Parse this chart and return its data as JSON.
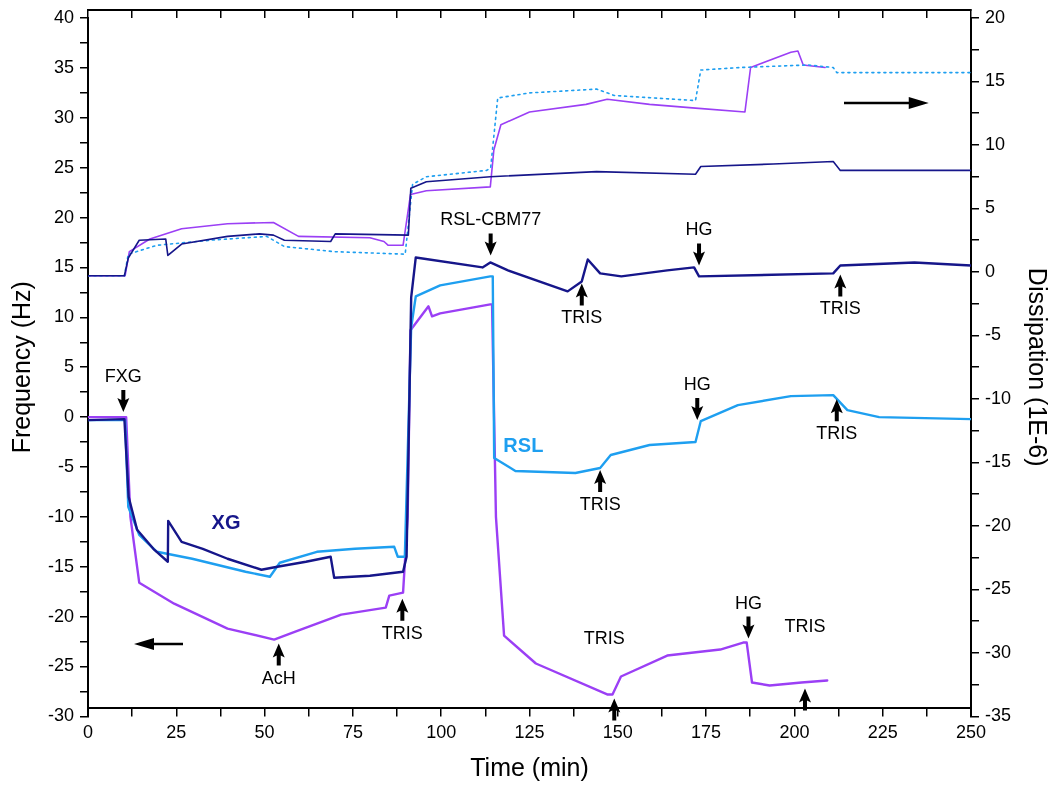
{
  "chart_data": {
    "type": "line",
    "xlabel": "Time (min)",
    "ylabel": "Frequency (Hz)",
    "y2label": "Dissipation (1E-6)",
    "xlim": [
      0,
      250
    ],
    "xticks": [
      0,
      {
        "value": 12.5,
        "label": null
      },
      25,
      {
        "value": 37.5,
        "label": null
      },
      50,
      {
        "value": 62.5,
        "label": null
      },
      75,
      {
        "value": 87.5,
        "label": null
      },
      100,
      {
        "value": 112.5,
        "label": null
      },
      125,
      {
        "value": 137.5,
        "label": null
      },
      150,
      {
        "value": 162.5,
        "label": null
      },
      175,
      {
        "value": 187.5,
        "label": null
      },
      200,
      {
        "value": 212.5,
        "label": null
      },
      225,
      {
        "value": 237.5,
        "label": null
      },
      250
    ],
    "ylim": [
      -30,
      40
    ],
    "yticks": [
      -30,
      {
        "value": -27.5,
        "label": null
      },
      -25,
      {
        "value": -22.5,
        "label": null
      },
      -20,
      {
        "value": -17.5,
        "label": null
      },
      -15,
      {
        "value": -12.5,
        "label": null
      },
      -10,
      {
        "value": -7.5,
        "label": null
      },
      -5,
      {
        "value": -2.5,
        "label": null
      },
      0,
      {
        "value": 2.5,
        "label": null
      },
      5,
      {
        "value": 7.5,
        "label": null
      },
      10,
      {
        "value": 12.5,
        "label": null
      },
      15,
      {
        "value": 17.5,
        "label": null
      },
      20,
      {
        "value": 22.5,
        "label": null
      },
      25,
      {
        "value": 27.5,
        "label": null
      },
      30,
      {
        "value": 32.5,
        "label": null
      },
      35,
      {
        "value": 37.5,
        "label": null
      },
      40
    ],
    "y2lim": [
      -35,
      20
    ],
    "y2ticks": [
      -35,
      {
        "value": -32.5,
        "label": null
      },
      -30,
      {
        "value": -27.5,
        "label": null
      },
      -25,
      {
        "value": -22.5,
        "label": null
      },
      -20,
      {
        "value": -17.5,
        "label": null
      },
      -15,
      {
        "value": -12.5,
        "label": null
      },
      -10,
      {
        "value": -7.5,
        "label": null
      },
      -5,
      {
        "value": -2.5,
        "label": null
      },
      0,
      {
        "value": 2.5,
        "label": null
      },
      5,
      {
        "value": 7.5,
        "label": null
      },
      10,
      {
        "value": 12.5,
        "label": null
      },
      15,
      {
        "value": 17.5,
        "label": null
      },
      20
    ],
    "grid": false,
    "legend": false,
    "marker": "none",
    "series": [
      {
        "name": "XG",
        "color": "#16168a",
        "line_style": "solid",
        "x": [
          0,
          10.3,
          11.5,
          13.9,
          18.5,
          22.6,
          22.7,
          26.5,
          32.5,
          39.5,
          49.1,
          53.6,
          61.7,
          68.7,
          69.7,
          79.8,
          89.2,
          90.2,
          91.5,
          92.8,
          111.7,
          113.9,
          118.9,
          135.8,
          139.8,
          141.5,
          145,
          151,
          164,
          171.6,
          173,
          211,
          213,
          234,
          250
        ],
        "values": [
          -0.3,
          -0.2,
          -8,
          -11.3,
          -13.2,
          -14.5,
          -10.4,
          -12.5,
          -13.2,
          -14.2,
          -15.3,
          -15,
          -14.5,
          -14,
          -16.1,
          -15.9,
          -15.5,
          -14,
          12,
          16,
          15,
          15.5,
          14.7,
          12.6,
          13.6,
          15.8,
          14.4,
          14.1,
          14.7,
          15,
          14.1,
          14.4,
          15.2,
          15.5,
          15.2
        ]
      },
      {
        "name": "RSL",
        "color": "#1e9ff0",
        "line_style": "solid",
        "x": [
          0,
          10.5,
          11.4,
          14.5,
          19.5,
          29.5,
          44.6,
          51.5,
          54.3,
          64.8,
          75.6,
          86.7,
          87.7,
          89.7,
          90.8,
          91.5,
          92.8,
          99.7,
          113.9,
          114.6,
          115,
          121,
          138,
          145,
          148,
          159,
          172,
          173.5,
          184,
          199,
          211,
          215,
          224,
          250
        ],
        "values": [
          -0.3,
          -0.3,
          -9,
          -11.8,
          -13.5,
          -14.2,
          -15.5,
          -16,
          -14.6,
          -13.5,
          -13.2,
          -13,
          -14,
          -14,
          0,
          9,
          12.1,
          13.2,
          14.1,
          14.1,
          -4.1,
          -5.4,
          -5.6,
          -5.1,
          -3.8,
          -2.8,
          -2.5,
          -0.4,
          1.2,
          2.1,
          2.2,
          0.7,
          0,
          -0.2
        ]
      },
      {
        "color": "#9b3ff5",
        "line_style": "solid",
        "x": [
          0,
          10.8,
          12,
          14.5,
          24.4,
          39.5,
          52.7,
          58.7,
          71.7,
          84.3,
          85.3,
          89.2,
          90.5,
          91.3,
          96.4,
          97.4,
          99.7,
          113.9,
          114.4,
          115.5,
          117.8,
          126.8,
          147,
          148.5,
          150.9,
          164,
          179,
          185.5,
          186.5,
          188,
          193,
          202,
          209.3
        ],
        "values": [
          0,
          0,
          -10,
          -16.6,
          -18.7,
          -21.2,
          -22.3,
          -21.5,
          -19.8,
          -19.1,
          -17.9,
          -17.6,
          -10,
          8.7,
          11.1,
          10.1,
          10.4,
          11.3,
          11.3,
          -10,
          -21.9,
          -24.7,
          -27.8,
          -27.8,
          -26,
          -23.9,
          -23.3,
          -22.6,
          -22.6,
          -26.6,
          -26.9,
          -26.6,
          -26.4
        ]
      },
      {
        "color": "#16168a",
        "line_style": "solid",
        "axis": "y2",
        "x": [
          0,
          10.3,
          11.4,
          14.5,
          22,
          22.6,
          26.5,
          39.5,
          48.5,
          52.5,
          55.6,
          68.7,
          70,
          90.7,
          91.4,
          95.8,
          113.9,
          144,
          172,
          173.5,
          194,
          211,
          213,
          250
        ],
        "values": [
          -0.3,
          -0.3,
          1.1,
          2.5,
          2.6,
          1.3,
          2.2,
          2.8,
          3,
          2.9,
          2.5,
          2.4,
          3,
          2.9,
          6.6,
          7.1,
          7.5,
          7.9,
          7.7,
          8.3,
          8.5,
          8.7,
          8,
          8
        ]
      },
      {
        "color": "#1e9ff0",
        "line_style": "dotted",
        "axis": "y2",
        "x": [
          0,
          10.3,
          11.4,
          19.5,
          34.6,
          50.6,
          55.6,
          69.7,
          89.8,
          91.9,
          95.8,
          112.9,
          114,
          116,
          125,
          144,
          149,
          172,
          173.5,
          184.5,
          204,
          211,
          212,
          250
        ],
        "values": [
          -0.3,
          -0.3,
          1.4,
          2.1,
          2.5,
          2.8,
          2,
          1.6,
          1.4,
          6.9,
          7.5,
          8,
          8.2,
          13.7,
          14.1,
          14.4,
          13.9,
          13.5,
          15.9,
          16.1,
          16.3,
          16.1,
          15.7,
          15.7
        ]
      },
      {
        "color": "#9b3ff5",
        "line_style": "solid",
        "axis": "y2",
        "x": [
          0,
          10.5,
          11.7,
          17.5,
          26.5,
          39.5,
          52.5,
          59.6,
          79.8,
          83.8,
          85,
          89.2,
          91.3,
          95.8,
          113.9,
          114.9,
          116.9,
          125,
          141,
          147,
          159,
          172,
          186,
          187.6,
          199,
          201,
          202.5,
          208.7
        ],
        "values": [
          -0.3,
          -0.3,
          1.6,
          2.6,
          3.4,
          3.8,
          3.9,
          2.8,
          2.7,
          2.4,
          2.1,
          2.1,
          6.1,
          6.4,
          6.7,
          9.6,
          11.6,
          12.6,
          13.2,
          13.6,
          13.2,
          12.9,
          12.6,
          16.1,
          17.3,
          17.4,
          16.3,
          16.1
        ]
      }
    ],
    "annotations": [
      {
        "text": "FXG",
        "x": 10,
        "y": 0.3
      },
      {
        "text": "AcH",
        "x": 54,
        "y": -22.5
      },
      {
        "text": "TRIS",
        "x": 89,
        "y": -18
      },
      {
        "text": "RSL-CBM77",
        "x": 114,
        "y": 16
      },
      {
        "text": "TRIS",
        "x": 139.8,
        "y": 13.6
      },
      {
        "text": "HG",
        "x": 173,
        "y": 15
      },
      {
        "text": "TRIS",
        "x": 213,
        "y": 14.5
      },
      {
        "text": "TRIS",
        "x": 145,
        "y": -5.1
      },
      {
        "text": "HG",
        "x": 172.5,
        "y": -0.5
      },
      {
        "text": "TRIS",
        "x": 212,
        "y": 2
      },
      {
        "text": "HG",
        "x": 187,
        "y": -22.4
      },
      {
        "text": "TRIS",
        "x": 149,
        "y": -28
      },
      {
        "text": "TRIS",
        "x": 203,
        "y": -27
      }
    ]
  }
}
